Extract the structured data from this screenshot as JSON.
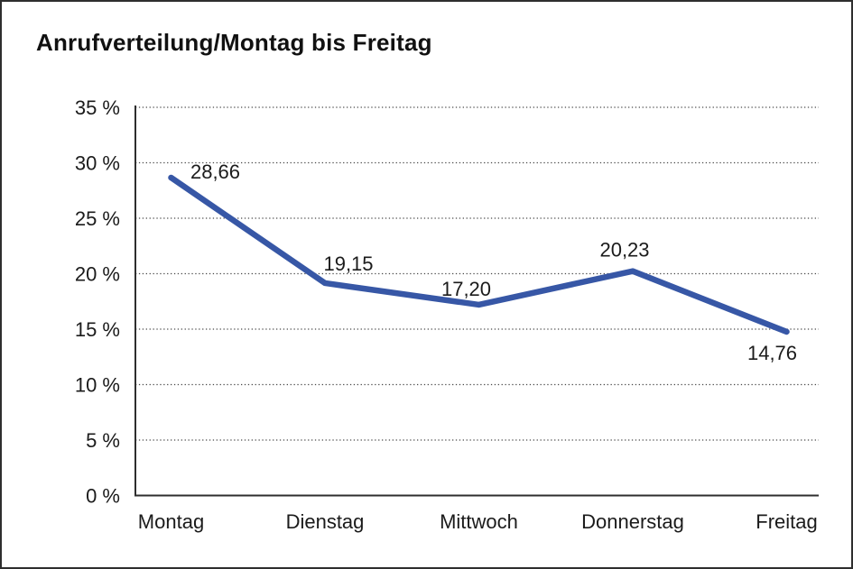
{
  "window": {
    "background_color": "#ffffff",
    "border_color": "#2e2e2e"
  },
  "header": {
    "title": "Anrufverteilung/Montag bis Freitag"
  },
  "chart_data": {
    "type": "line",
    "title": "Anrufverteilung/Montag bis Freitag",
    "categories": [
      "Montag",
      "Dienstag",
      "Mittwoch",
      "Donnerstag",
      "Freitag"
    ],
    "values": [
      28.66,
      19.15,
      17.2,
      20.23,
      14.76
    ],
    "value_labels": [
      "28,66",
      "19,15",
      "17,20",
      "20,23",
      "14,76"
    ],
    "xlabel": "",
    "ylabel": "",
    "ylim": [
      0,
      35
    ],
    "ytick_step": 5,
    "ytick_labels": [
      "0 %",
      "5 %",
      "10 %",
      "15 %",
      "20 %",
      "25 %",
      "30 %",
      "35 %"
    ],
    "grid": "horizontal-dotted",
    "legend_position": "none",
    "colors": {
      "line": "#3757a6",
      "gridline": "#4a4a4a",
      "axis": "#2e2e2e",
      "text": "#1b1b1b"
    },
    "line_width": 6.5
  }
}
